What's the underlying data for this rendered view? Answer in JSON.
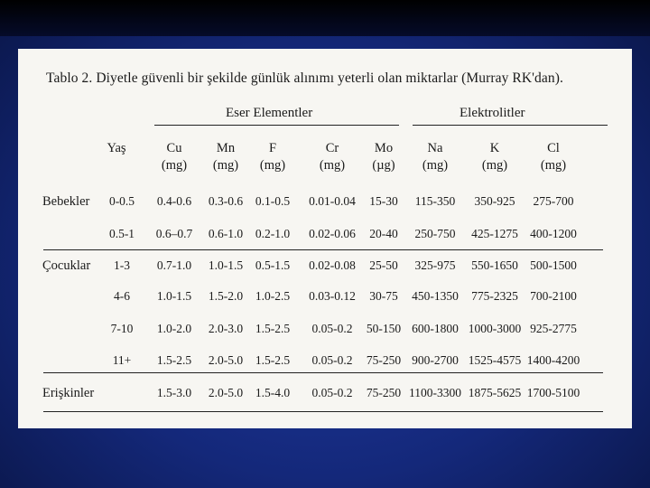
{
  "caption": "Tablo 2. Diyetle güvenli bir şekilde günlük alınımı yeterli olan miktarlar (Murray RK'dan).",
  "groups": {
    "trace": "Eser Elementler",
    "electrolytes": "Elektrolitler"
  },
  "columns": [
    {
      "name": "Yaş",
      "unit": ""
    },
    {
      "name": "Cu",
      "unit": "(mg)"
    },
    {
      "name": "Mn",
      "unit": "(mg)"
    },
    {
      "name": "F",
      "unit": "(mg)"
    },
    {
      "name": "Cr",
      "unit": "(mg)"
    },
    {
      "name": "Mo",
      "unit": "(µg)"
    },
    {
      "name": "Na",
      "unit": "(mg)"
    },
    {
      "name": "K",
      "unit": "(mg)"
    },
    {
      "name": "Cl",
      "unit": "(mg)"
    }
  ],
  "rows": [
    {
      "group": "Bebekler",
      "age": "0-0.5",
      "values": [
        "0.4-0.6",
        "0.3-0.6",
        "0.1-0.5",
        "0.01-0.04",
        "15-30",
        "115-350",
        "350-925",
        "275-700"
      ]
    },
    {
      "group": "",
      "age": "0.5-1",
      "values": [
        "0.6–0.7",
        "0.6-1.0",
        "0.2-1.0",
        "0.02-0.06",
        "20-40",
        "250-750",
        "425-1275",
        "400-1200"
      ]
    },
    {
      "group": "Çocuklar",
      "age": "1-3",
      "values": [
        "0.7-1.0",
        "1.0-1.5",
        "0.5-1.5",
        "0.02-0.08",
        "25-50",
        "325-975",
        "550-1650",
        "500-1500"
      ]
    },
    {
      "group": "",
      "age": "4-6",
      "values": [
        "1.0-1.5",
        "1.5-2.0",
        "1.0-2.5",
        "0.03-0.12",
        "30-75",
        "450-1350",
        "775-2325",
        "700-2100"
      ]
    },
    {
      "group": "",
      "age": "7-10",
      "values": [
        "1.0-2.0",
        "2.0-3.0",
        "1.5-2.5",
        "0.05-0.2",
        "50-150",
        "600-1800",
        "1000-3000",
        "925-2775"
      ]
    },
    {
      "group": "",
      "age": "11+",
      "values": [
        "1.5-2.5",
        "2.0-5.0",
        "1.5-2.5",
        "0.05-0.2",
        "75-250",
        "900-2700",
        "1525-4575",
        "1400-4200"
      ]
    },
    {
      "group": "Erişkinler",
      "age": "",
      "values": [
        "1.5-3.0",
        "2.0-5.0",
        "1.5-4.0",
        "0.05-0.2",
        "75-250",
        "1100-3300",
        "1875-5625",
        "1700-5100"
      ]
    }
  ]
}
